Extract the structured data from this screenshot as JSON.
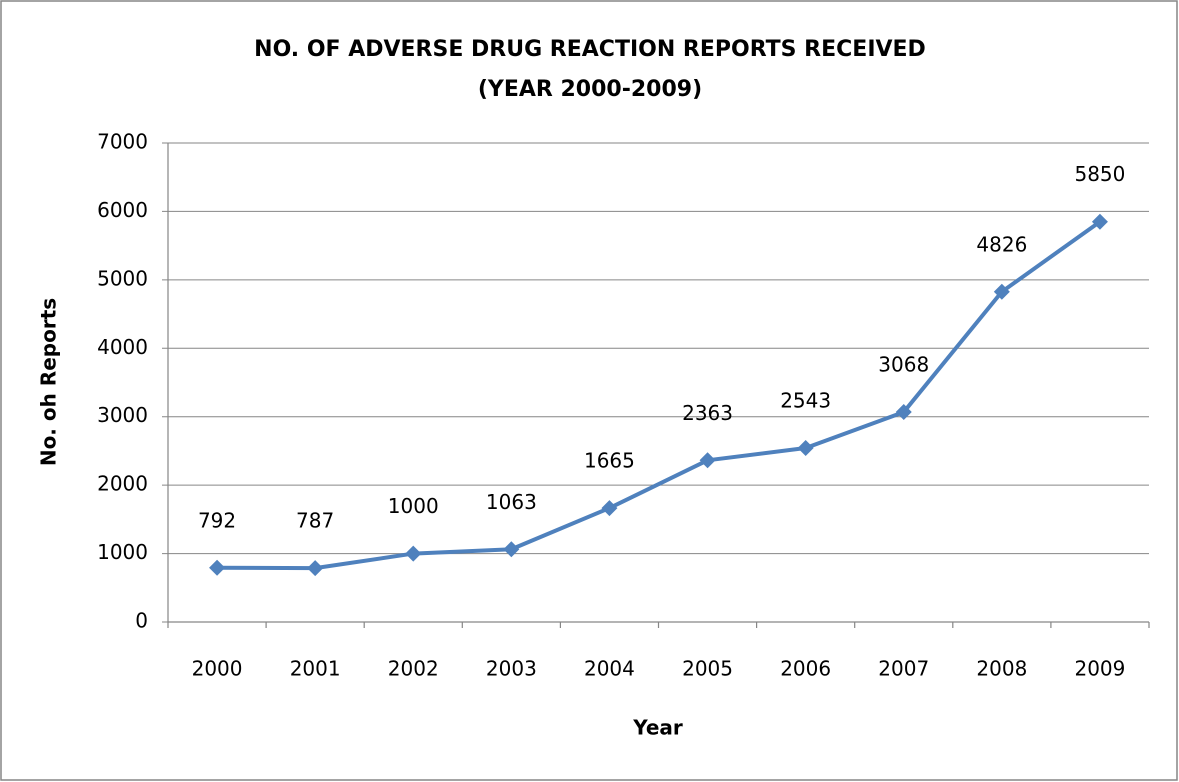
{
  "chart_data": {
    "type": "line",
    "title": "NO. OF ADVERSE DRUG REACTION REPORTS RECEIVED",
    "subtitle": "(YEAR 2000-2009)",
    "x_label": "Year",
    "y_label": "No. oh Reports",
    "categories": [
      "2000",
      "2001",
      "2002",
      "2003",
      "2004",
      "2005",
      "2006",
      "2007",
      "2008",
      "2009"
    ],
    "series": [
      {
        "name": "No. oh Reports",
        "color": "#4f81bd",
        "values": [
          792,
          787,
          1000,
          1063,
          1665,
          2363,
          2543,
          3068,
          4826,
          5850
        ]
      }
    ],
    "ylim": [
      0,
      7000
    ],
    "yticks": [
      0,
      1000,
      2000,
      3000,
      4000,
      5000,
      6000,
      7000
    ],
    "grid": true,
    "legend": false
  }
}
